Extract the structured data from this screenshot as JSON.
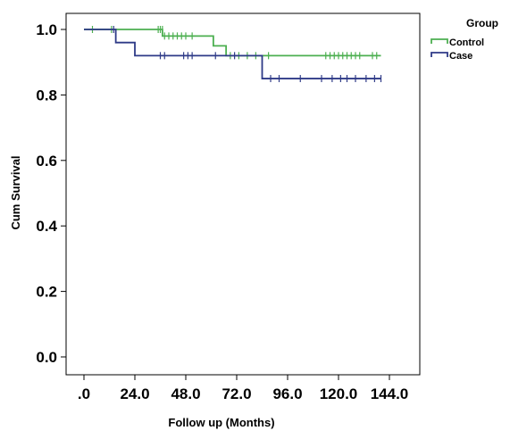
{
  "chart_data": {
    "type": "line",
    "subtype": "kaplan-meier-step",
    "title": "",
    "xlabel": "Follow up (Months)",
    "ylabel": "Cum Survival",
    "xlim": [
      0,
      144
    ],
    "ylim": [
      0.0,
      1.0
    ],
    "x_ticks": [
      0,
      24,
      48,
      72,
      96,
      120,
      144
    ],
    "x_tick_labels": [
      ".0",
      "24.0",
      "48.0",
      "72.0",
      "96.0",
      "120.0",
      "144.0"
    ],
    "y_ticks": [
      0.0,
      0.2,
      0.4,
      0.6,
      0.8,
      1.0
    ],
    "y_tick_labels": [
      "0.0",
      "0.2",
      "0.4",
      "0.6",
      "0.8",
      "1.0"
    ],
    "grid": false,
    "legend": {
      "title": "Group",
      "position": "top-right"
    },
    "series": [
      {
        "name": "Control",
        "color": "#4caf50",
        "steps": [
          [
            0,
            1.0
          ],
          [
            37,
            0.98
          ],
          [
            61,
            0.95
          ],
          [
            67,
            0.92
          ],
          [
            140,
            0.92
          ]
        ],
        "censored": [
          [
            4,
            1.0
          ],
          [
            13,
            1.0
          ],
          [
            35,
            1.0
          ],
          [
            36,
            1.0
          ],
          [
            37,
            1.0
          ],
          [
            38,
            0.98
          ],
          [
            40,
            0.98
          ],
          [
            42,
            0.98
          ],
          [
            44,
            0.98
          ],
          [
            46,
            0.98
          ],
          [
            48,
            0.98
          ],
          [
            51,
            0.98
          ],
          [
            69,
            0.92
          ],
          [
            73,
            0.92
          ],
          [
            77,
            0.92
          ],
          [
            81,
            0.92
          ],
          [
            87,
            0.92
          ],
          [
            114,
            0.92
          ],
          [
            116,
            0.92
          ],
          [
            118,
            0.92
          ],
          [
            120,
            0.92
          ],
          [
            122,
            0.92
          ],
          [
            124,
            0.92
          ],
          [
            126,
            0.92
          ],
          [
            128,
            0.92
          ],
          [
            130,
            0.92
          ],
          [
            136,
            0.92
          ],
          [
            138,
            0.92
          ]
        ]
      },
      {
        "name": "Case",
        "color": "#2e3a87",
        "steps": [
          [
            0,
            1.0
          ],
          [
            15,
            0.96
          ],
          [
            24,
            0.92
          ],
          [
            84,
            0.85
          ],
          [
            140,
            0.85
          ]
        ],
        "censored": [
          [
            14,
            1.0
          ],
          [
            36,
            0.92
          ],
          [
            38,
            0.92
          ],
          [
            47,
            0.92
          ],
          [
            49,
            0.92
          ],
          [
            51,
            0.92
          ],
          [
            62,
            0.92
          ],
          [
            71,
            0.92
          ],
          [
            88,
            0.85
          ],
          [
            92,
            0.85
          ],
          [
            102,
            0.85
          ],
          [
            112,
            0.85
          ],
          [
            117,
            0.85
          ],
          [
            121,
            0.85
          ],
          [
            124,
            0.85
          ],
          [
            128,
            0.85
          ],
          [
            133,
            0.85
          ],
          [
            137,
            0.85
          ],
          [
            140,
            0.85
          ]
        ]
      }
    ]
  }
}
